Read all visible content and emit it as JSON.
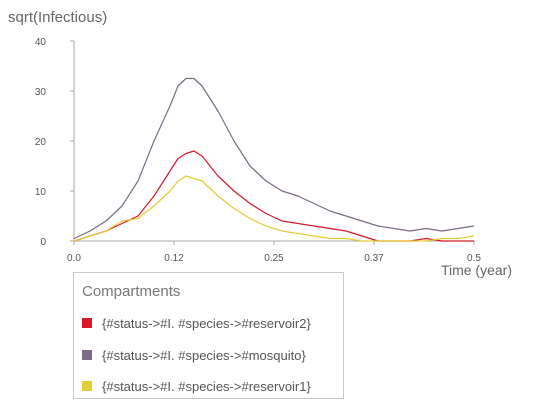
{
  "chart_data": {
    "type": "line",
    "title": "",
    "ylabel": "sqrt(Infectious)",
    "xlabel": "Time (year)",
    "xlim": [
      0,
      0.5
    ],
    "ylim": [
      0,
      40
    ],
    "x_ticks": [
      "0.0",
      "0.12",
      "0.25",
      "0.37",
      "0.5"
    ],
    "x_tick_values": [
      0,
      0.125,
      0.25,
      0.375,
      0.5
    ],
    "y_ticks": [
      "0",
      "10",
      "20",
      "30",
      "40"
    ],
    "y_tick_values": [
      0,
      10,
      20,
      30,
      40
    ],
    "grid": false,
    "legend_title": "Compartments",
    "legend_position": "bottom-left",
    "x": [
      0,
      0.02,
      0.04,
      0.06,
      0.08,
      0.1,
      0.12,
      0.13,
      0.14,
      0.15,
      0.16,
      0.18,
      0.2,
      0.22,
      0.24,
      0.26,
      0.28,
      0.3,
      0.32,
      0.34,
      0.36,
      0.38,
      0.4,
      0.42,
      0.44,
      0.46,
      0.48,
      0.5
    ],
    "series": [
      {
        "name": "{#status->#I. #species->#reservoir2}",
        "color": "#d7192a",
        "values": [
          0,
          1,
          2,
          3.5,
          5,
          9,
          14,
          16.5,
          17.5,
          18,
          17,
          13,
          10,
          7.5,
          5.5,
          4,
          3.5,
          3,
          2.5,
          2,
          1,
          0,
          0,
          0,
          0.5,
          0,
          0,
          0
        ]
      },
      {
        "name": "{#status->#I. #species->#mosquito}",
        "color": "#7c6b85",
        "values": [
          0.5,
          2,
          4,
          7,
          12,
          20,
          27,
          31,
          32.5,
          32.5,
          31,
          26,
          20,
          15,
          12,
          10,
          9,
          7.5,
          6,
          5,
          4,
          3,
          2.5,
          2,
          2.5,
          2,
          2.5,
          3
        ]
      },
      {
        "name": "{#status->#I. #species->#reservoir1}",
        "color": "#e3cd34",
        "values": [
          0,
          1,
          2,
          4,
          4.5,
          7,
          10,
          12,
          13,
          12.5,
          12,
          9,
          6.5,
          4.5,
          3,
          2,
          1.5,
          1,
          0.5,
          0.5,
          0,
          0,
          0,
          0,
          0,
          0.5,
          0.5,
          1
        ]
      }
    ]
  }
}
